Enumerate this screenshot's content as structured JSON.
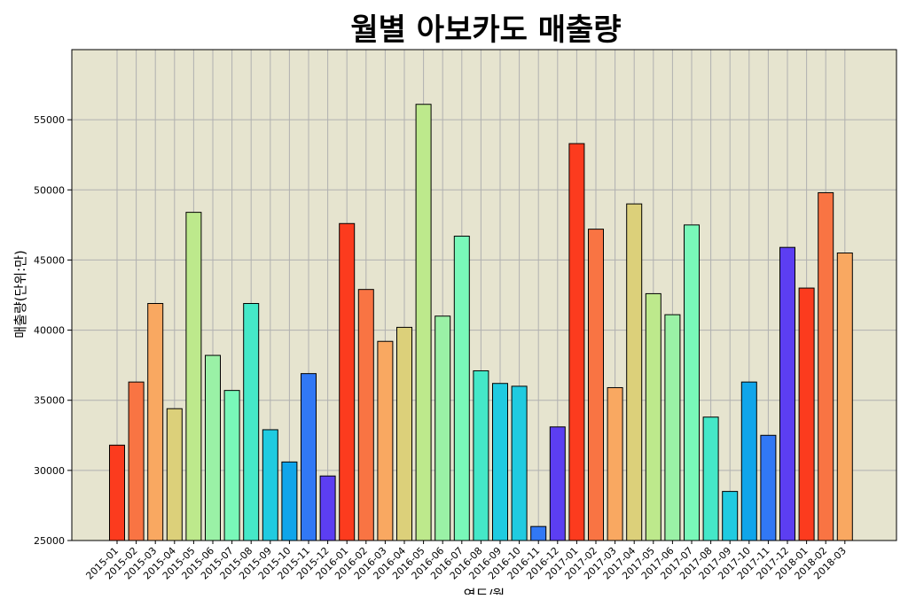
{
  "chart_data": {
    "type": "bar",
    "title": "월별 아보카도 매출량",
    "xlabel": "연도/월",
    "ylabel": "매출량(단위:만)",
    "ylim": [
      25000,
      60000
    ],
    "yticks": [
      25000,
      30000,
      35000,
      40000,
      45000,
      50000,
      55000
    ],
    "grid": true,
    "legend": "none",
    "plot_background": "#e6e4cf",
    "categories": [
      "2015-01",
      "2015-02",
      "2015-03",
      "2015-04",
      "2015-05",
      "2015-06",
      "2015-07",
      "2015-08",
      "2015-09",
      "2015-10",
      "2015-11",
      "2015-12",
      "2016-01",
      "2016-02",
      "2016-03",
      "2016-04",
      "2016-05",
      "2016-06",
      "2016-07",
      "2016-08",
      "2016-09",
      "2016-10",
      "2016-11",
      "2016-12",
      "2017-01",
      "2017-02",
      "2017-03",
      "2017-04",
      "2017-05",
      "2017-06",
      "2017-07",
      "2017-08",
      "2017-09",
      "2017-10",
      "2017-11",
      "2017-12",
      "2018-01",
      "2018-02",
      "2018-03"
    ],
    "values": [
      31800,
      36300,
      41900,
      34400,
      48400,
      38200,
      35700,
      41900,
      32900,
      30600,
      36900,
      29600,
      47600,
      42900,
      39200,
      40200,
      56100,
      41000,
      46700,
      37100,
      36200,
      36000,
      26000,
      33100,
      53300,
      47200,
      35900,
      49000,
      42600,
      41100,
      47500,
      33800,
      28500,
      36300,
      32500,
      45900,
      43000,
      49800,
      45500
    ],
    "colors": [
      "#fc3b1e",
      "#f97443",
      "#f9a861",
      "#dcd07a",
      "#bde98c",
      "#9af1a6",
      "#79f8b9",
      "#45e8c8",
      "#20cbe0",
      "#10a5ea",
      "#3178f5",
      "#5c3ef2",
      "#fc3b1e",
      "#f97443",
      "#f9a861",
      "#dcd07a",
      "#bde98c",
      "#9af1a6",
      "#79f8b9",
      "#45e8c8",
      "#20cbe0",
      "#20cbe0",
      "#3178f5",
      "#5c3ef2",
      "#fc3b1e",
      "#f97443",
      "#f9a861",
      "#dcd07a",
      "#bde98c",
      "#9af1a6",
      "#79f8b9",
      "#45e8c8",
      "#20cbe0",
      "#10a5ea",
      "#3178f5",
      "#5c3ef2",
      "#fc3b1e",
      "#f97443",
      "#f9a861"
    ]
  }
}
